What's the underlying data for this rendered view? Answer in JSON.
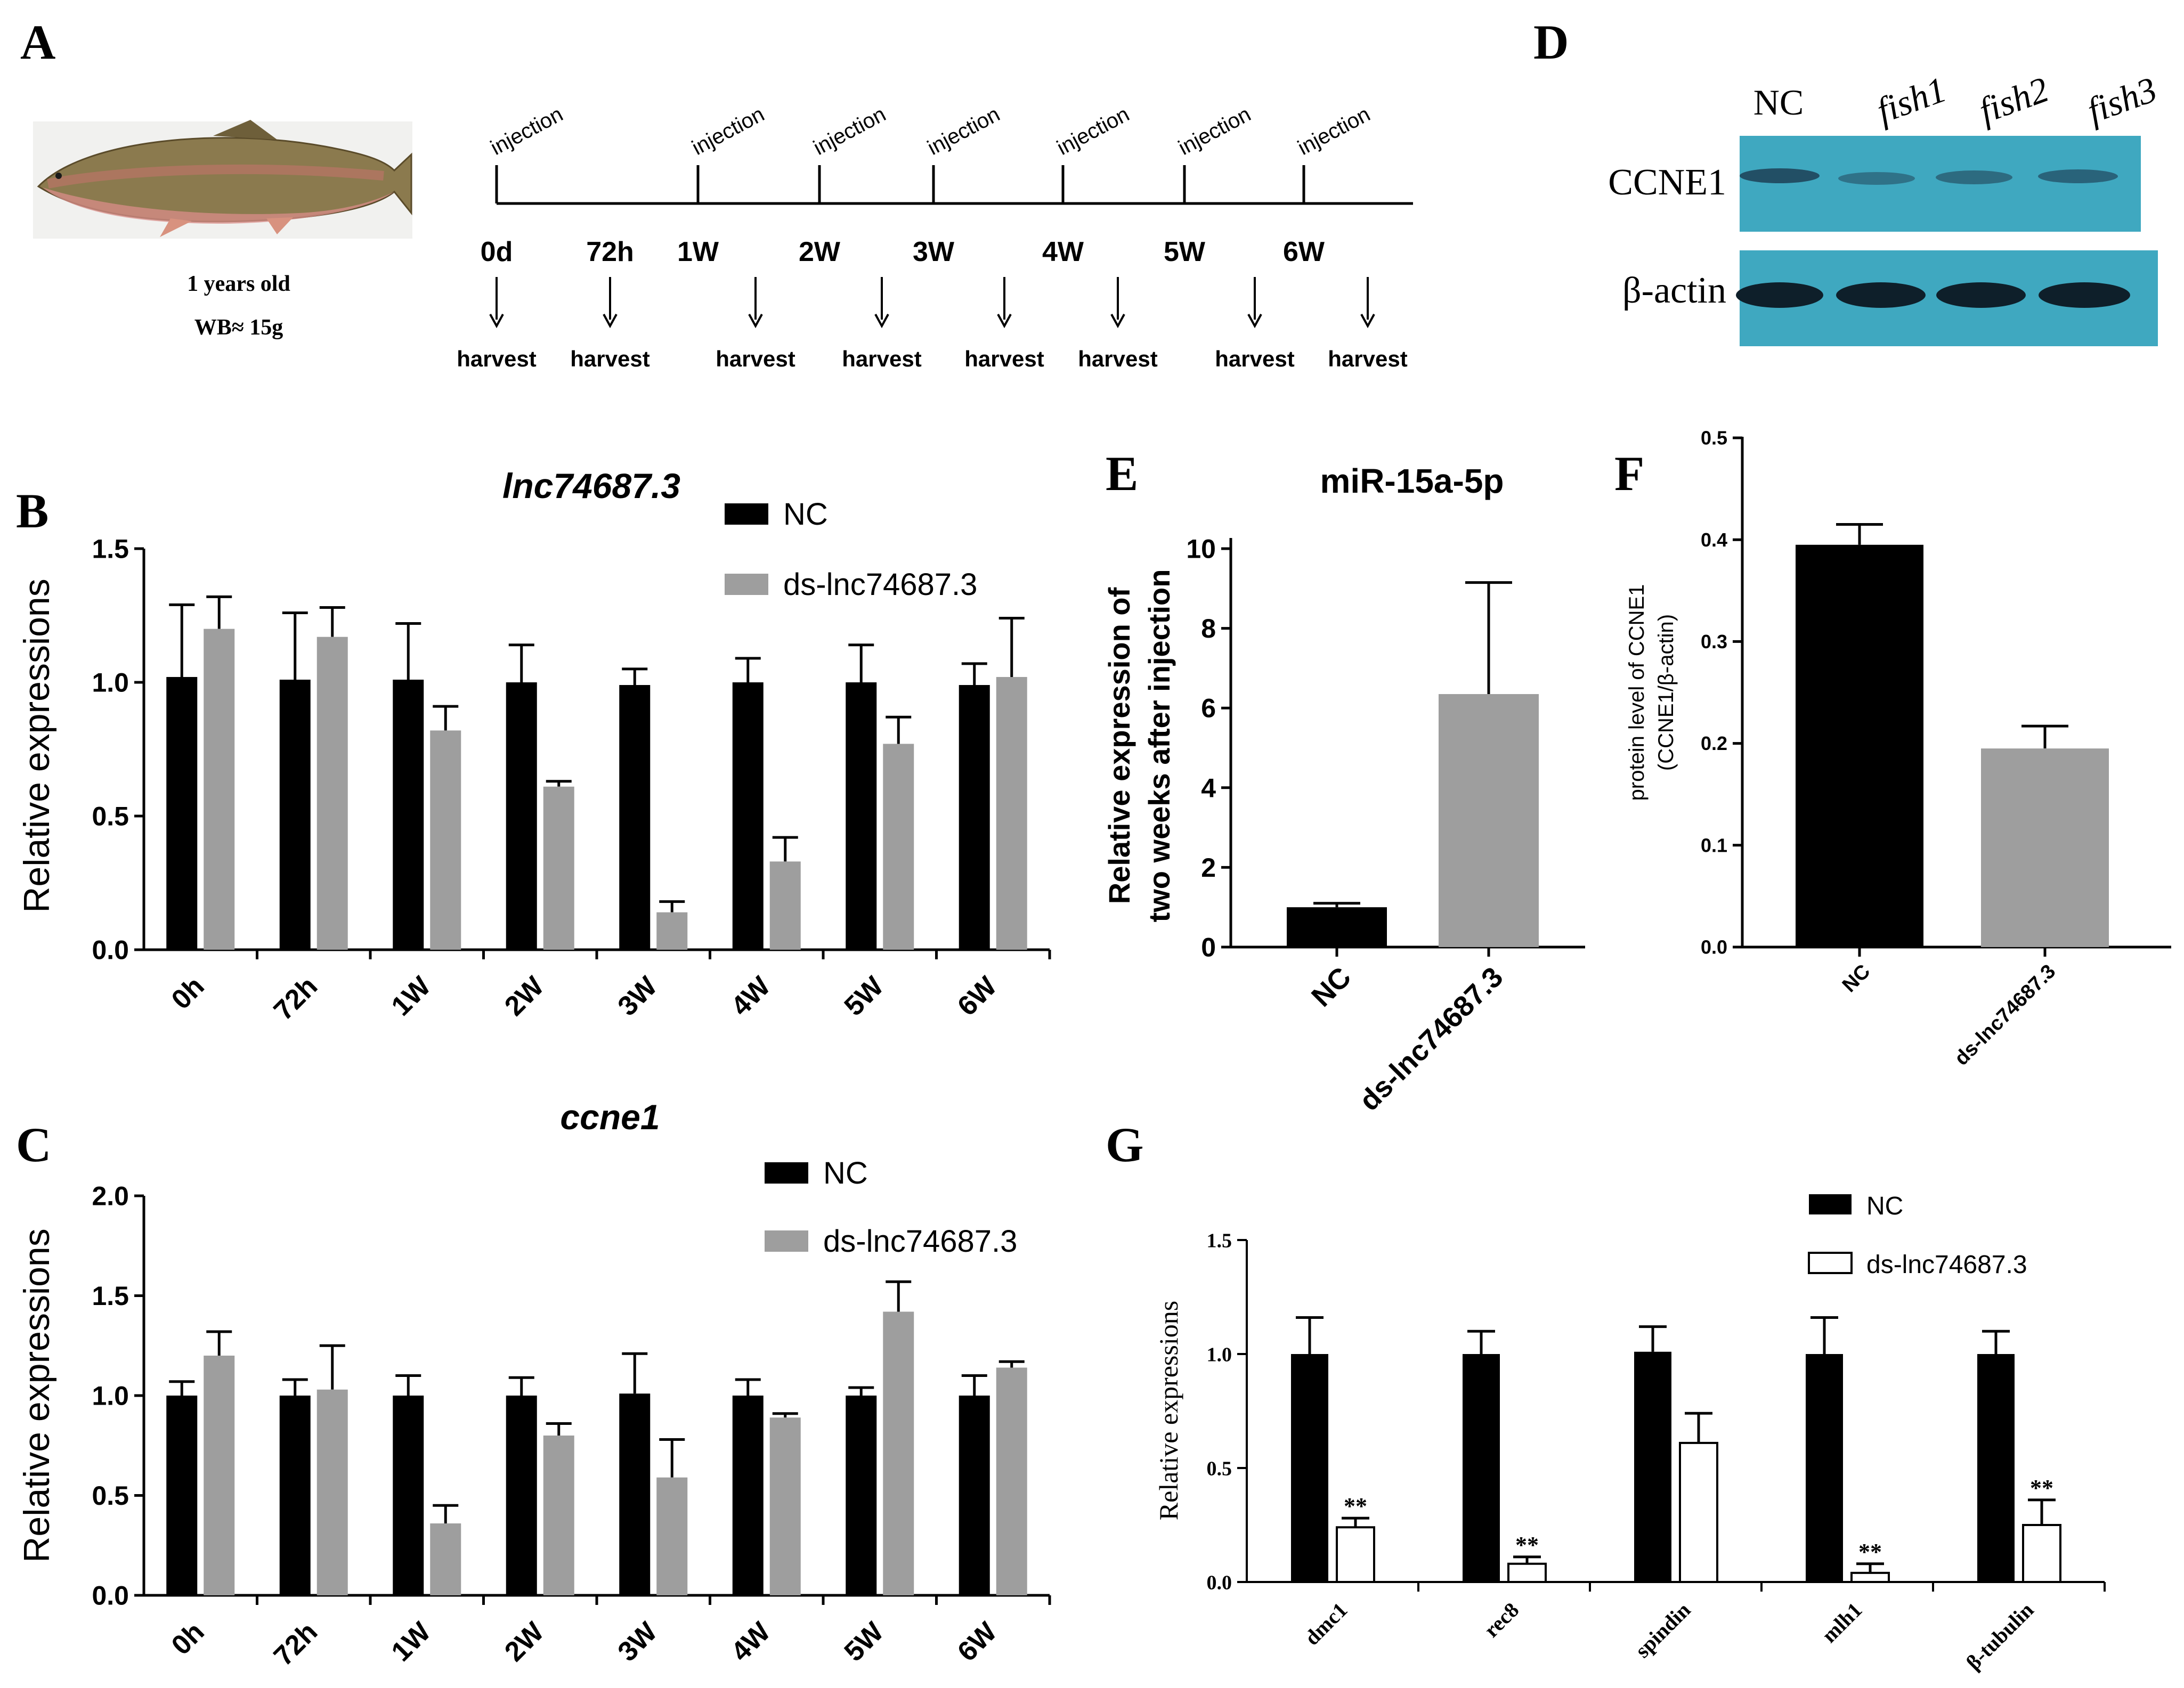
{
  "colors": {
    "nc": "#000000",
    "ds": "#9e9e9e",
    "ds_g": "#ffffff",
    "blot_bg": "#3aa9c3",
    "axis": "#000000"
  },
  "panels": {
    "A": {
      "letter": "A"
    },
    "B": {
      "letter": "B"
    },
    "C": {
      "letter": "C"
    },
    "D": {
      "letter": "D"
    },
    "E": {
      "letter": "E"
    },
    "F": {
      "letter": "F"
    },
    "G": {
      "letter": "G"
    }
  },
  "timeline": {
    "fish_caption_1": "1 years old",
    "fish_caption_2": "WB≈ 15g",
    "injection_label": "injection",
    "injection_points": [
      "0d",
      "1W",
      "2W",
      "3W",
      "4W",
      "5W",
      "6W"
    ],
    "time_labels": [
      "0d",
      "72h",
      "1W",
      "2W",
      "3W",
      "4W",
      "5W",
      "6W"
    ],
    "harvest_label": "harvest",
    "harvest_count": 8
  },
  "western_blot": {
    "lanes": [
      "NC",
      "fish1",
      "fish2",
      "fish3"
    ],
    "rows": [
      "CCNE1",
      "β-actin"
    ]
  },
  "chart_data": [
    {
      "id": "B",
      "type": "bar",
      "title": "lnc74687.3",
      "ylabel": "Relative expressions",
      "xlabel": "",
      "categories": [
        "0h",
        "72h",
        "1W",
        "2W",
        "3W",
        "4W",
        "5W",
        "6W"
      ],
      "ylim": [
        0,
        1.5
      ],
      "yticks": [
        "0.0",
        "0.5",
        "1.0",
        "1.5"
      ],
      "legend": [
        "NC",
        "ds-lnc74687.3"
      ],
      "series": [
        {
          "name": "NC",
          "values": [
            1.02,
            1.01,
            1.01,
            1.0,
            0.99,
            1.0,
            1.0,
            0.99
          ],
          "errors": [
            0.27,
            0.25,
            0.21,
            0.14,
            0.06,
            0.09,
            0.14,
            0.08
          ]
        },
        {
          "name": "ds-lnc74687.3",
          "values": [
            1.2,
            1.17,
            0.82,
            0.61,
            0.14,
            0.33,
            0.77,
            1.02
          ],
          "errors": [
            0.12,
            0.11,
            0.09,
            0.02,
            0.04,
            0.09,
            0.1,
            0.22
          ]
        }
      ]
    },
    {
      "id": "C",
      "type": "bar",
      "title": "ccne1",
      "ylabel": "Relative expressions",
      "xlabel": "",
      "categories": [
        "0h",
        "72h",
        "1W",
        "2W",
        "3W",
        "4W",
        "5W",
        "6W"
      ],
      "ylim": [
        0,
        2.0
      ],
      "yticks": [
        "0.0",
        "0.5",
        "1.0",
        "1.5",
        "2.0"
      ],
      "legend": [
        "NC",
        "ds-lnc74687.3"
      ],
      "series": [
        {
          "name": "NC",
          "values": [
            1.0,
            1.0,
            1.0,
            1.0,
            1.01,
            1.0,
            1.0,
            1.0
          ],
          "errors": [
            0.07,
            0.08,
            0.1,
            0.09,
            0.2,
            0.08,
            0.04,
            0.1
          ]
        },
        {
          "name": "ds-lnc74687.3",
          "values": [
            1.2,
            1.03,
            0.36,
            0.8,
            0.59,
            0.89,
            1.42,
            1.14
          ],
          "errors": [
            0.12,
            0.22,
            0.09,
            0.06,
            0.19,
            0.02,
            0.15,
            0.03
          ]
        }
      ]
    },
    {
      "id": "E",
      "type": "bar",
      "title": "miR-15a-5p",
      "ylabel_1": "Relative expression of",
      "ylabel_2": "two weeks after injection",
      "xlabel": "",
      "categories": [
        "NC",
        "ds-lnc74687.3"
      ],
      "ylim": [
        0,
        10
      ],
      "yticks": [
        "0",
        "2",
        "4",
        "6",
        "8",
        "10"
      ],
      "values": [
        1.0,
        6.35
      ],
      "errors": [
        0.1,
        2.8
      ]
    },
    {
      "id": "F",
      "type": "bar",
      "title": "",
      "ylabel_1": "protein level of CCNE1",
      "ylabel_2": "(CCNE1/β-actin)",
      "xlabel": "",
      "categories": [
        "NC",
        "ds-lnc74687.3"
      ],
      "ylim": [
        0,
        0.5
      ],
      "yticks": [
        "0.0",
        "0.1",
        "0.2",
        "0.3",
        "0.4",
        "0.5"
      ],
      "values": [
        0.395,
        0.195
      ],
      "errors": [
        0.02,
        0.022
      ]
    },
    {
      "id": "G",
      "type": "bar",
      "title": "",
      "ylabel": "Relative expressions",
      "xlabel": "",
      "categories": [
        "dmc1",
        "rec8",
        "spindin",
        "mlh1",
        "β-tubulin"
      ],
      "ylim": [
        0,
        1.5
      ],
      "yticks": [
        "0.0",
        "0.5",
        "1.0",
        "1.5"
      ],
      "legend": [
        "NC",
        "ds-lnc74687.3"
      ],
      "significance": [
        "**",
        "**",
        "",
        "**",
        "**"
      ],
      "series": [
        {
          "name": "NC",
          "values": [
            1.0,
            1.0,
            1.01,
            1.0,
            1.0
          ],
          "errors": [
            0.16,
            0.1,
            0.11,
            0.16,
            0.1
          ]
        },
        {
          "name": "ds-lnc74687.3",
          "values": [
            0.24,
            0.08,
            0.61,
            0.04,
            0.25
          ],
          "errors": [
            0.04,
            0.03,
            0.13,
            0.04,
            0.11
          ]
        }
      ]
    }
  ]
}
